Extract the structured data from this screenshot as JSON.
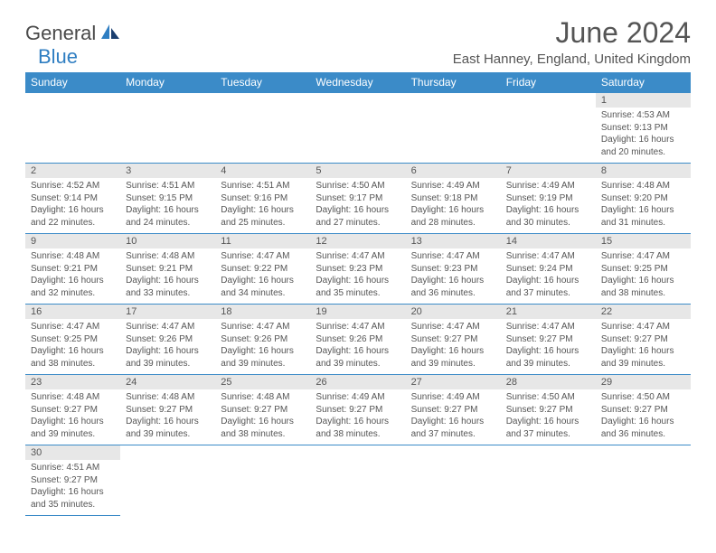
{
  "logo": {
    "part1": "General",
    "part2": "Blue"
  },
  "title": "June 2024",
  "location": "East Hanney, England, United Kingdom",
  "colors": {
    "header_bg": "#3b8bc8",
    "header_text": "#ffffff",
    "daynum_bg": "#e7e7e7",
    "text": "#555555",
    "border": "#3b8bc8",
    "logo_blue": "#2f7ec2",
    "logo_gray": "#4a4a4a"
  },
  "daynames": [
    "Sunday",
    "Monday",
    "Tuesday",
    "Wednesday",
    "Thursday",
    "Friday",
    "Saturday"
  ],
  "weeks": [
    [
      null,
      null,
      null,
      null,
      null,
      null,
      {
        "n": "1",
        "sr": "Sunrise: 4:53 AM",
        "ss": "Sunset: 9:13 PM",
        "d1": "Daylight: 16 hours",
        "d2": "and 20 minutes."
      }
    ],
    [
      {
        "n": "2",
        "sr": "Sunrise: 4:52 AM",
        "ss": "Sunset: 9:14 PM",
        "d1": "Daylight: 16 hours",
        "d2": "and 22 minutes."
      },
      {
        "n": "3",
        "sr": "Sunrise: 4:51 AM",
        "ss": "Sunset: 9:15 PM",
        "d1": "Daylight: 16 hours",
        "d2": "and 24 minutes."
      },
      {
        "n": "4",
        "sr": "Sunrise: 4:51 AM",
        "ss": "Sunset: 9:16 PM",
        "d1": "Daylight: 16 hours",
        "d2": "and 25 minutes."
      },
      {
        "n": "5",
        "sr": "Sunrise: 4:50 AM",
        "ss": "Sunset: 9:17 PM",
        "d1": "Daylight: 16 hours",
        "d2": "and 27 minutes."
      },
      {
        "n": "6",
        "sr": "Sunrise: 4:49 AM",
        "ss": "Sunset: 9:18 PM",
        "d1": "Daylight: 16 hours",
        "d2": "and 28 minutes."
      },
      {
        "n": "7",
        "sr": "Sunrise: 4:49 AM",
        "ss": "Sunset: 9:19 PM",
        "d1": "Daylight: 16 hours",
        "d2": "and 30 minutes."
      },
      {
        "n": "8",
        "sr": "Sunrise: 4:48 AM",
        "ss": "Sunset: 9:20 PM",
        "d1": "Daylight: 16 hours",
        "d2": "and 31 minutes."
      }
    ],
    [
      {
        "n": "9",
        "sr": "Sunrise: 4:48 AM",
        "ss": "Sunset: 9:21 PM",
        "d1": "Daylight: 16 hours",
        "d2": "and 32 minutes."
      },
      {
        "n": "10",
        "sr": "Sunrise: 4:48 AM",
        "ss": "Sunset: 9:21 PM",
        "d1": "Daylight: 16 hours",
        "d2": "and 33 minutes."
      },
      {
        "n": "11",
        "sr": "Sunrise: 4:47 AM",
        "ss": "Sunset: 9:22 PM",
        "d1": "Daylight: 16 hours",
        "d2": "and 34 minutes."
      },
      {
        "n": "12",
        "sr": "Sunrise: 4:47 AM",
        "ss": "Sunset: 9:23 PM",
        "d1": "Daylight: 16 hours",
        "d2": "and 35 minutes."
      },
      {
        "n": "13",
        "sr": "Sunrise: 4:47 AM",
        "ss": "Sunset: 9:23 PM",
        "d1": "Daylight: 16 hours",
        "d2": "and 36 minutes."
      },
      {
        "n": "14",
        "sr": "Sunrise: 4:47 AM",
        "ss": "Sunset: 9:24 PM",
        "d1": "Daylight: 16 hours",
        "d2": "and 37 minutes."
      },
      {
        "n": "15",
        "sr": "Sunrise: 4:47 AM",
        "ss": "Sunset: 9:25 PM",
        "d1": "Daylight: 16 hours",
        "d2": "and 38 minutes."
      }
    ],
    [
      {
        "n": "16",
        "sr": "Sunrise: 4:47 AM",
        "ss": "Sunset: 9:25 PM",
        "d1": "Daylight: 16 hours",
        "d2": "and 38 minutes."
      },
      {
        "n": "17",
        "sr": "Sunrise: 4:47 AM",
        "ss": "Sunset: 9:26 PM",
        "d1": "Daylight: 16 hours",
        "d2": "and 39 minutes."
      },
      {
        "n": "18",
        "sr": "Sunrise: 4:47 AM",
        "ss": "Sunset: 9:26 PM",
        "d1": "Daylight: 16 hours",
        "d2": "and 39 minutes."
      },
      {
        "n": "19",
        "sr": "Sunrise: 4:47 AM",
        "ss": "Sunset: 9:26 PM",
        "d1": "Daylight: 16 hours",
        "d2": "and 39 minutes."
      },
      {
        "n": "20",
        "sr": "Sunrise: 4:47 AM",
        "ss": "Sunset: 9:27 PM",
        "d1": "Daylight: 16 hours",
        "d2": "and 39 minutes."
      },
      {
        "n": "21",
        "sr": "Sunrise: 4:47 AM",
        "ss": "Sunset: 9:27 PM",
        "d1": "Daylight: 16 hours",
        "d2": "and 39 minutes."
      },
      {
        "n": "22",
        "sr": "Sunrise: 4:47 AM",
        "ss": "Sunset: 9:27 PM",
        "d1": "Daylight: 16 hours",
        "d2": "and 39 minutes."
      }
    ],
    [
      {
        "n": "23",
        "sr": "Sunrise: 4:48 AM",
        "ss": "Sunset: 9:27 PM",
        "d1": "Daylight: 16 hours",
        "d2": "and 39 minutes."
      },
      {
        "n": "24",
        "sr": "Sunrise: 4:48 AM",
        "ss": "Sunset: 9:27 PM",
        "d1": "Daylight: 16 hours",
        "d2": "and 39 minutes."
      },
      {
        "n": "25",
        "sr": "Sunrise: 4:48 AM",
        "ss": "Sunset: 9:27 PM",
        "d1": "Daylight: 16 hours",
        "d2": "and 38 minutes."
      },
      {
        "n": "26",
        "sr": "Sunrise: 4:49 AM",
        "ss": "Sunset: 9:27 PM",
        "d1": "Daylight: 16 hours",
        "d2": "and 38 minutes."
      },
      {
        "n": "27",
        "sr": "Sunrise: 4:49 AM",
        "ss": "Sunset: 9:27 PM",
        "d1": "Daylight: 16 hours",
        "d2": "and 37 minutes."
      },
      {
        "n": "28",
        "sr": "Sunrise: 4:50 AM",
        "ss": "Sunset: 9:27 PM",
        "d1": "Daylight: 16 hours",
        "d2": "and 37 minutes."
      },
      {
        "n": "29",
        "sr": "Sunrise: 4:50 AM",
        "ss": "Sunset: 9:27 PM",
        "d1": "Daylight: 16 hours",
        "d2": "and 36 minutes."
      }
    ],
    [
      {
        "n": "30",
        "sr": "Sunrise: 4:51 AM",
        "ss": "Sunset: 9:27 PM",
        "d1": "Daylight: 16 hours",
        "d2": "and 35 minutes."
      },
      null,
      null,
      null,
      null,
      null,
      null
    ]
  ]
}
